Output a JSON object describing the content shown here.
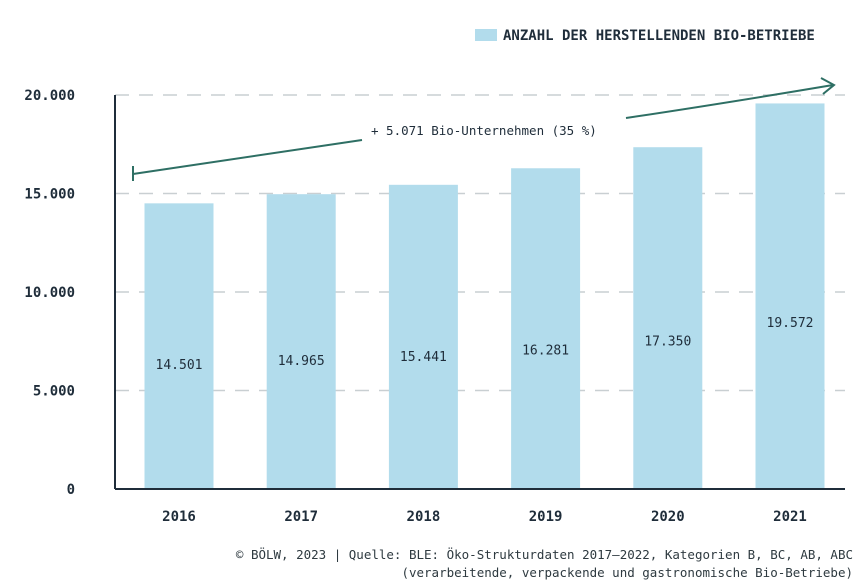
{
  "chart_data": {
    "type": "bar",
    "legend_label": "ANZAHL DER HERSTELLENDEN BIO-BETRIEBE",
    "categories": [
      "2016",
      "2017",
      "2018",
      "2019",
      "2020",
      "2021"
    ],
    "values": [
      14501,
      14965,
      15441,
      16281,
      17350,
      19572
    ],
    "value_labels": [
      "14.501",
      "14.965",
      "15.441",
      "16.281",
      "17.350",
      "19.572"
    ],
    "ylim": [
      0,
      20000
    ],
    "yticks": [
      0,
      5000,
      10000,
      15000,
      20000
    ],
    "ytick_labels": [
      "0",
      "5.000",
      "10.000",
      "15.000",
      "20.000"
    ],
    "annotation": "+ 5.071 Bio-Unternehmen (35 %)",
    "legend_position": "top-right",
    "grid": true
  },
  "colors": {
    "bar": "#b2dcec",
    "arrow": "#2e6f64",
    "text": "#1f2d3a",
    "grid": "#c9cfd2"
  },
  "source": {
    "line1": "© BÖLW, 2023 | Quelle: BLE: Öko-Strukturdaten 2017–2022, Kategorien B, BC, AB, ABC",
    "line2": "(verarbeitende, verpackende und gastronomische Bio-Betriebe)"
  }
}
